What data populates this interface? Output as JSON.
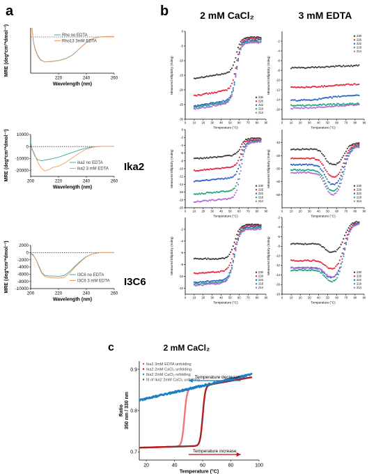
{
  "figure": {
    "panel_letters": [
      "a",
      "b",
      "c"
    ],
    "col_headers": [
      "2 mM CaCl₂",
      "3 mM EDTA"
    ],
    "row_labels": [
      "",
      "Ika2",
      "I3C6"
    ],
    "panel_c_title": "2 mM CaCl₂"
  },
  "colors": {
    "teal": "#3aa7a4",
    "orange": "#f39a63",
    "s230": "#3b3b3b",
    "s226": "#e4263b",
    "s222": "#2a62c8",
    "s218": "#1ba878",
    "s214": "#b46ad8",
    "c_edta": "#e94a4a",
    "c_ca_unf": "#c00f0f",
    "c_ca_ref": "#1f7ec1",
    "c_fit": "#555555"
  },
  "chart_data": [
    {
      "id": "a1",
      "type": "line",
      "xlabel": "Wavelength  (nm)",
      "ylabel": "MRE (deg*cm²*dmol⁻¹)",
      "xlim": [
        200,
        260
      ],
      "ylim": [
        -40000,
        10000
      ],
      "xticks": [
        220,
        240,
        260
      ],
      "yticks": [],
      "zero_line": true,
      "legend": "top-right",
      "series": [
        {
          "name": "Rho no EDTA",
          "color": "teal",
          "points": [
            [
              200,
              60000
            ],
            [
              201,
              10000
            ],
            [
              202,
              -5000
            ],
            [
              203,
              -12000
            ],
            [
              205,
              -20000
            ],
            [
              207,
              -25000
            ],
            [
              210,
              -27500
            ],
            [
              215,
              -27000
            ],
            [
              220,
              -26000
            ],
            [
              225,
              -24000
            ],
            [
              230,
              -20000
            ],
            [
              235,
              -13000
            ],
            [
              240,
              -6000
            ],
            [
              245,
              -1500
            ],
            [
              250,
              0
            ],
            [
              255,
              500
            ],
            [
              260,
              500
            ]
          ]
        },
        {
          "name": "Rho13 3mM EDTA",
          "color": "orange",
          "points": [
            [
              200,
              55000
            ],
            [
              201,
              8000
            ],
            [
              202,
              -6000
            ],
            [
              203,
              -13000
            ],
            [
              205,
              -21000
            ],
            [
              207,
              -25500
            ],
            [
              210,
              -27500
            ],
            [
              215,
              -27200
            ],
            [
              220,
              -26200
            ],
            [
              225,
              -24200
            ],
            [
              230,
              -20200
            ],
            [
              235,
              -13200
            ],
            [
              240,
              -6200
            ],
            [
              245,
              -1600
            ],
            [
              250,
              0
            ],
            [
              255,
              400
            ],
            [
              260,
              400
            ]
          ]
        }
      ]
    },
    {
      "id": "a2",
      "type": "line",
      "xlabel": "Wavelength  (nm)",
      "ylabel": "MRE (deg*cm²*dmol⁻¹)",
      "xlim": [
        200,
        260
      ],
      "ylim": [
        -25000,
        10000
      ],
      "xticks": [
        200,
        220,
        240,
        260
      ],
      "yticks": [
        10000,
        0,
        -10000,
        -20000
      ],
      "zero_line": true,
      "legend": "bottom-right",
      "series": [
        {
          "name": "ika2 no EDTA",
          "color": "teal",
          "points": [
            [
              200,
              4000
            ],
            [
              201,
              -2000
            ],
            [
              203,
              -8000
            ],
            [
              205,
              -11000
            ],
            [
              208,
              -12000
            ],
            [
              212,
              -11000
            ],
            [
              216,
              -10000
            ],
            [
              220,
              -9000
            ],
            [
              225,
              -7000
            ],
            [
              230,
              -5000
            ],
            [
              235,
              -3000
            ],
            [
              240,
              -1200
            ],
            [
              245,
              -300
            ],
            [
              250,
              0
            ],
            [
              260,
              0
            ]
          ]
        },
        {
          "name": "ika2 3 mM EDTA",
          "color": "orange",
          "points": [
            [
              200,
              -2000
            ],
            [
              202,
              -4000
            ],
            [
              204,
              -10000
            ],
            [
              206,
              -15000
            ],
            [
              208,
              -18500
            ],
            [
              210,
              -20500
            ],
            [
              213,
              -19500
            ],
            [
              216,
              -17500
            ],
            [
              220,
              -16500
            ],
            [
              225,
              -13500
            ],
            [
              230,
              -9500
            ],
            [
              235,
              -5500
            ],
            [
              240,
              -2200
            ],
            [
              245,
              -500
            ],
            [
              250,
              0
            ],
            [
              260,
              0
            ]
          ]
        }
      ]
    },
    {
      "id": "a3",
      "type": "line",
      "xlabel": "Wavelength  (nm)",
      "ylabel": "MRE (deg*cm²*dmol⁻¹)",
      "xlim": [
        200,
        260
      ],
      "ylim": [
        -10000,
        2000
      ],
      "xticks": [
        200,
        220,
        240,
        260
      ],
      "yticks": [
        2000,
        0,
        -2000,
        -4000,
        -6000,
        -8000,
        -10000
      ],
      "zero_line": true,
      "legend": "bottom-right",
      "series": [
        {
          "name": "I3C6 no EDTA",
          "color": "teal",
          "points": [
            [
              200,
              -300
            ],
            [
              202,
              -800
            ],
            [
              204,
              -2000
            ],
            [
              206,
              -3800
            ],
            [
              208,
              -5500
            ],
            [
              210,
              -6300
            ],
            [
              213,
              -6500
            ],
            [
              216,
              -6500
            ],
            [
              220,
              -6600
            ],
            [
              224,
              -6400
            ],
            [
              228,
              -5300
            ],
            [
              232,
              -3700
            ],
            [
              236,
              -2300
            ],
            [
              240,
              -1100
            ],
            [
              245,
              -300
            ],
            [
              250,
              0
            ],
            [
              260,
              0
            ]
          ]
        },
        {
          "name": "I3C6 3 mM EDTA",
          "color": "orange",
          "points": [
            [
              200,
              -100
            ],
            [
              202,
              -600
            ],
            [
              204,
              -2100
            ],
            [
              206,
              -4100
            ],
            [
              208,
              -5800
            ],
            [
              210,
              -6600
            ],
            [
              213,
              -6900
            ],
            [
              216,
              -7000
            ],
            [
              220,
              -7100
            ],
            [
              224,
              -6900
            ],
            [
              228,
              -5700
            ],
            [
              232,
              -4000
            ],
            [
              236,
              -2500
            ],
            [
              240,
              -1200
            ],
            [
              245,
              -300
            ],
            [
              250,
              0
            ],
            [
              260,
              0
            ]
          ]
        }
      ]
    },
    {
      "id": "b11",
      "type": "scatter",
      "xlabel": "Temperature (°C)",
      "ylabel": "Measured Ellipticity (mdeg)",
      "xlim": [
        0,
        90
      ],
      "ylim": [
        -30,
        0
      ],
      "xticks": [
        0,
        10,
        20,
        30,
        40,
        50,
        60,
        70,
        80,
        90
      ],
      "yticks": [
        0,
        -5,
        -10,
        -15,
        -20,
        -25,
        -30
      ],
      "legend": "bottom-right",
      "tm": 57,
      "width": 2.5,
      "series": [
        {
          "name": "230",
          "color": "s230",
          "low": -16,
          "high": -2,
          "slope": 0.045
        },
        {
          "name": "226",
          "color": "s226",
          "low": -22,
          "high": -2.5,
          "slope": 0.05
        },
        {
          "name": "222",
          "color": "s222",
          "low": -25.5,
          "high": -3,
          "slope": 0.05
        },
        {
          "name": "218",
          "color": "s218",
          "low": -26,
          "high": -3.5,
          "slope": 0.05
        },
        {
          "name": "214",
          "color": "s214",
          "low": -26.5,
          "high": -3.8,
          "slope": 0.05
        }
      ]
    },
    {
      "id": "b12",
      "type": "scatter",
      "xlabel": "Temperature (°C)",
      "ylabel": "Measured Ellipticity (mdeg)",
      "xlim": [
        0,
        90
      ],
      "ylim": [
        -18,
        0
      ],
      "xticks": [
        0,
        10,
        20,
        30,
        40,
        50,
        60,
        70,
        80,
        90
      ],
      "yticks": [
        -2,
        -4,
        -6,
        -8,
        -10,
        -12,
        -14,
        -16
      ],
      "legend": "top-right",
      "tm": 52,
      "width": 12,
      "series": [
        {
          "name": "230",
          "color": "s230",
          "low": -7.5,
          "high": -7.0,
          "slope": 0
        },
        {
          "name": "226",
          "color": "s226",
          "low": -11.5,
          "high": -10.8,
          "slope": 0
        },
        {
          "name": "222",
          "color": "s222",
          "low": -14.2,
          "high": -13.0,
          "slope": 0
        },
        {
          "name": "218",
          "color": "s218",
          "low": -15.2,
          "high": -14.8,
          "slope": 0
        },
        {
          "name": "214",
          "color": "s214",
          "low": -15.8,
          "high": -15.0,
          "slope": 0
        }
      ]
    },
    {
      "id": "b21",
      "type": "scatter",
      "xlabel": "Temperature (°C)",
      "ylabel": "Measured Ellipticity (mdeg)",
      "xlim": [
        0,
        90
      ],
      "ylim": [
        -20,
        0
      ],
      "xticks": [
        0,
        10,
        20,
        30,
        40,
        50,
        60,
        70,
        80,
        90
      ],
      "yticks": [
        0,
        -2,
        -4,
        -6,
        -8,
        -10,
        -12,
        -14,
        -16,
        -18,
        -20
      ],
      "legend": "bottom-right",
      "tm": 62,
      "width": 2.5,
      "series": [
        {
          "name": "230",
          "color": "s230",
          "low": -7.5,
          "high": -2.2,
          "slope": 0.02
        },
        {
          "name": "226",
          "color": "s226",
          "low": -10.5,
          "high": -2.5,
          "slope": 0.02
        },
        {
          "name": "222",
          "color": "s222",
          "low": -13.2,
          "high": -2.8,
          "slope": 0.02
        },
        {
          "name": "218",
          "color": "s218",
          "low": -16.5,
          "high": -3.0,
          "slope": 0.02
        },
        {
          "name": "214",
          "color": "s214",
          "low": -18.5,
          "high": -3.2,
          "slope": 0.02
        }
      ]
    },
    {
      "id": "b22",
      "type": "scatter",
      "xlabel": "Temperature (°C)",
      "ylabel": "Measured Ellipticity (mdeg)",
      "xlim": [
        0,
        90
      ],
      "ylim": [
        -60,
        0
      ],
      "xticks": [
        0,
        10,
        20,
        30,
        40,
        50,
        60,
        70,
        80,
        90
      ],
      "yticks": [
        -10,
        -20,
        -30,
        -40,
        -50
      ],
      "legend": "bottom-right",
      "dip": true,
      "series": [
        {
          "name": "230",
          "color": "s230",
          "base": -15,
          "depth": -28,
          "end": -10
        },
        {
          "name": "226",
          "color": "s226",
          "base": -22,
          "depth": -38,
          "end": -11
        },
        {
          "name": "222",
          "color": "s222",
          "base": -27,
          "depth": -44,
          "end": -12
        },
        {
          "name": "218",
          "color": "s218",
          "base": -31,
          "depth": -49,
          "end": -12.5
        },
        {
          "name": "214",
          "color": "s214",
          "base": -33,
          "depth": -52,
          "end": -13
        }
      ]
    },
    {
      "id": "b31",
      "type": "scatter",
      "xlabel": "Temperature (°C)",
      "ylabel": "Measured Ellipticity (mdeg)",
      "xlim": [
        0,
        90
      ],
      "ylim": [
        -13,
        0
      ],
      "xticks": [
        0,
        10,
        20,
        30,
        40,
        50,
        60,
        70,
        80,
        90
      ],
      "yticks": [
        -2,
        -4,
        -6,
        -8,
        -10,
        -12
      ],
      "legend": "bottom-right",
      "tm": 55,
      "width": 3,
      "series": [
        {
          "name": "230",
          "color": "s230",
          "low": -7.0,
          "high": -1.2,
          "slope": 0
        },
        {
          "name": "226",
          "color": "s226",
          "low": -9.5,
          "high": -1.4,
          "slope": 0.01
        },
        {
          "name": "222",
          "color": "s222",
          "low": -11.0,
          "high": -1.6,
          "slope": 0.01
        },
        {
          "name": "218",
          "color": "s218",
          "low": -11.3,
          "high": -1.8,
          "slope": 0.01
        },
        {
          "name": "214",
          "color": "s214",
          "low": -11.5,
          "high": -2.0,
          "slope": 0.01
        }
      ]
    },
    {
      "id": "b32",
      "type": "scatter",
      "xlabel": "Temperature (°C)",
      "ylabel": "Measured Ellipticity (mdeg)",
      "xlim": [
        0,
        90
      ],
      "ylim": [
        -18,
        -2
      ],
      "xticks": [
        0,
        10,
        20,
        30,
        40,
        50,
        60,
        70,
        80,
        90
      ],
      "yticks": [
        -2,
        -4,
        -6,
        -8,
        -10,
        -12,
        -14,
        -16,
        -18
      ],
      "legend": "bottom-right",
      "dip": true,
      "series": [
        {
          "name": "230",
          "color": "s230",
          "base": -7.5,
          "depth": -9.5,
          "end": -2.8
        },
        {
          "name": "226",
          "color": "s226",
          "base": -11,
          "depth": -13,
          "end": -3.0
        },
        {
          "name": "222",
          "color": "s222",
          "base": -12.5,
          "depth": -15,
          "end": -3.1
        },
        {
          "name": "218",
          "color": "s218",
          "base": -13,
          "depth": -15.8,
          "end": -3.2
        },
        {
          "name": "214",
          "color": "s214",
          "base": -12.5,
          "depth": -14.8,
          "end": -3.3
        }
      ]
    },
    {
      "id": "c",
      "type": "line",
      "xlabel": "Temperature (°C)",
      "ylabel": "Ratio\n350 nm / 330 nm",
      "xlim": [
        15,
        100
      ],
      "ylim": [
        0.68,
        0.92
      ],
      "xticks": [
        20,
        40,
        60,
        80,
        100
      ],
      "yticks": [
        0.7,
        0.8,
        0.9
      ],
      "legend": "top-left",
      "series": [
        {
          "name": "Ika2 3mM EDTA unfolding",
          "color": "c_edta",
          "kind": "sigmoid",
          "tm": 47,
          "low": 0.71,
          "high": 0.86
        },
        {
          "name": "Ika2 2mM CaCl₂ unfolding",
          "color": "c_ca_unf",
          "kind": "sigmoid",
          "tm": 60,
          "low": 0.71,
          "high": 0.86
        },
        {
          "name": "Ika2 2mM CaCl₂ refolding",
          "color": "c_ca_ref",
          "kind": "linear",
          "y0": 0.825,
          "y1": 0.888
        },
        {
          "name": "fit of Ika2 2mM CaCl₂ unfolding",
          "color": "c_fit",
          "kind": "sigmoid",
          "tm": 60,
          "low": 0.71,
          "high": 0.86
        }
      ],
      "annotations": [
        "Temperature decrease",
        "Temperature increase"
      ]
    }
  ]
}
